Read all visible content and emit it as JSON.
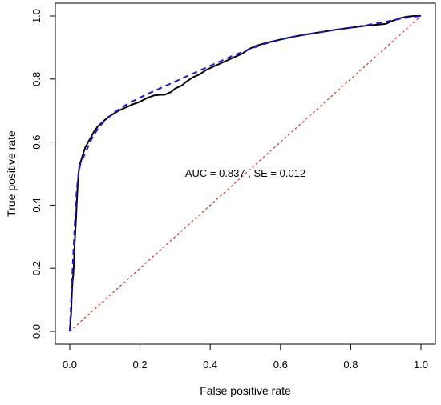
{
  "chart_data": {
    "type": "line",
    "xlabel": "False positive rate",
    "ylabel": "True positive rate",
    "xlim": [
      0,
      1
    ],
    "ylim": [
      0,
      1
    ],
    "grid": false,
    "x_ticks": [
      "0.0",
      "0.2",
      "0.4",
      "0.6",
      "0.8",
      "1.0"
    ],
    "y_ticks": [
      "0.0",
      "0.2",
      "0.4",
      "0.6",
      "0.8",
      "1.0"
    ],
    "annotation": "AUC =  0.837 , SE =  0.012",
    "annotation_position": {
      "x": 0.5,
      "y": 0.5
    },
    "series": [
      {
        "style": "solid",
        "color": "#000000",
        "x": [
          0.0,
          0.002,
          0.004,
          0.006,
          0.008,
          0.01,
          0.012,
          0.014,
          0.016,
          0.018,
          0.02,
          0.022,
          0.025,
          0.028,
          0.032,
          0.036,
          0.04,
          0.045,
          0.05,
          0.06,
          0.07,
          0.08,
          0.09,
          0.1,
          0.11,
          0.125,
          0.14,
          0.16,
          0.18,
          0.2,
          0.22,
          0.24,
          0.26,
          0.27,
          0.29,
          0.3,
          0.32,
          0.33,
          0.35,
          0.37,
          0.39,
          0.41,
          0.43,
          0.45,
          0.47,
          0.49,
          0.51,
          0.53,
          0.55,
          0.58,
          0.61,
          0.64,
          0.68,
          0.72,
          0.76,
          0.8,
          0.85,
          0.9,
          0.92,
          0.94,
          0.96,
          0.98,
          1.0
        ],
        "y": [
          0.0,
          0.03,
          0.06,
          0.12,
          0.16,
          0.18,
          0.22,
          0.28,
          0.32,
          0.36,
          0.41,
          0.45,
          0.5,
          0.53,
          0.54,
          0.555,
          0.57,
          0.585,
          0.595,
          0.615,
          0.635,
          0.65,
          0.66,
          0.67,
          0.68,
          0.69,
          0.7,
          0.71,
          0.72,
          0.728,
          0.74,
          0.748,
          0.75,
          0.75,
          0.76,
          0.77,
          0.78,
          0.79,
          0.805,
          0.815,
          0.83,
          0.84,
          0.85,
          0.86,
          0.87,
          0.88,
          0.895,
          0.905,
          0.912,
          0.92,
          0.928,
          0.935,
          0.943,
          0.95,
          0.957,
          0.963,
          0.97,
          0.975,
          0.985,
          0.993,
          0.998,
          1.0,
          1.0
        ]
      },
      {
        "style": "dashed",
        "color": "#1a1adb",
        "x": [
          0.0,
          0.004,
          0.008,
          0.012,
          0.016,
          0.02,
          0.025,
          0.03,
          0.04,
          0.05,
          0.06,
          0.07,
          0.08,
          0.09,
          0.1,
          0.12,
          0.14,
          0.16,
          0.18,
          0.2,
          0.22,
          0.24,
          0.26,
          0.28,
          0.3,
          0.32,
          0.34,
          0.36,
          0.38,
          0.4,
          0.42,
          0.44,
          0.46,
          0.48,
          0.5,
          0.55,
          0.6,
          0.65,
          0.7,
          0.75,
          0.8,
          0.85,
          0.9,
          0.95,
          1.0
        ],
        "y": [
          0.0,
          0.1,
          0.2,
          0.29,
          0.38,
          0.45,
          0.5,
          0.53,
          0.555,
          0.58,
          0.605,
          0.625,
          0.642,
          0.656,
          0.668,
          0.688,
          0.704,
          0.718,
          0.73,
          0.741,
          0.752,
          0.762,
          0.772,
          0.782,
          0.792,
          0.802,
          0.812,
          0.822,
          0.832,
          0.842,
          0.852,
          0.862,
          0.872,
          0.881,
          0.89,
          0.91,
          0.925,
          0.937,
          0.946,
          0.955,
          0.963,
          0.972,
          0.982,
          0.993,
          1.0
        ]
      },
      {
        "style": "dotted",
        "color": "#e52a2a",
        "x": [
          0,
          1
        ],
        "y": [
          0,
          1
        ]
      }
    ]
  }
}
